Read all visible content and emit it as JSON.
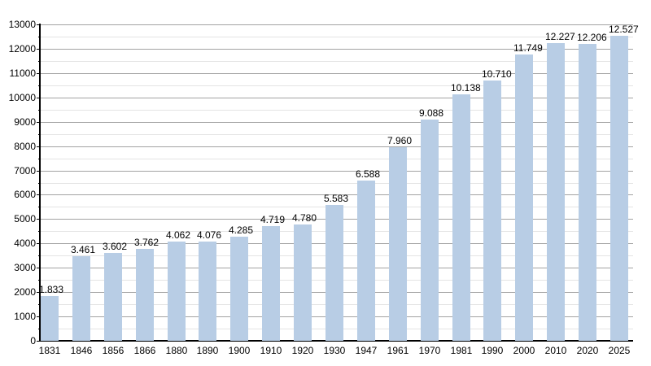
{
  "chart_data": {
    "type": "bar",
    "title": "",
    "xlabel": "",
    "ylabel": "",
    "categories": [
      "1831",
      "1846",
      "1856",
      "1866",
      "1880",
      "1890",
      "1900",
      "1910",
      "1920",
      "1930",
      "1947",
      "1961",
      "1970",
      "1981",
      "1990",
      "2000",
      "2010",
      "2020",
      "2025"
    ],
    "values": [
      1833,
      3461,
      3602,
      3762,
      4062,
      4076,
      4285,
      4719,
      4780,
      5583,
      6588,
      7960,
      9088,
      10138,
      10710,
      11749,
      12227,
      12206,
      12527
    ],
    "bar_labels": [
      "1.833",
      "3.461",
      "3.602",
      "3.762",
      "4.062",
      "4.076",
      "4.285",
      "4.719",
      "4.780",
      "5.583",
      "6.588",
      "7.960",
      "9.088",
      "10.138",
      "10.710",
      "11.749",
      "12.227",
      "12.206",
      "12.527"
    ],
    "y_tick_labels": [
      "0",
      "1000",
      "2000",
      "3000",
      "4000",
      "5000",
      "6000",
      "7000",
      "8000",
      "9000",
      "10000",
      "11000",
      "12000",
      "13000"
    ],
    "ylim": [
      0,
      13000
    ],
    "y_major_step": 1000,
    "y_minor_step": 500,
    "grid": true,
    "legend": "none",
    "colors": {
      "bar_fill": "#b8cde5",
      "major_grid": "#a3a3a3",
      "minor_grid": "#e4e4e4",
      "axis": "#000000",
      "text": "#000000",
      "background": "#ffffff"
    }
  }
}
